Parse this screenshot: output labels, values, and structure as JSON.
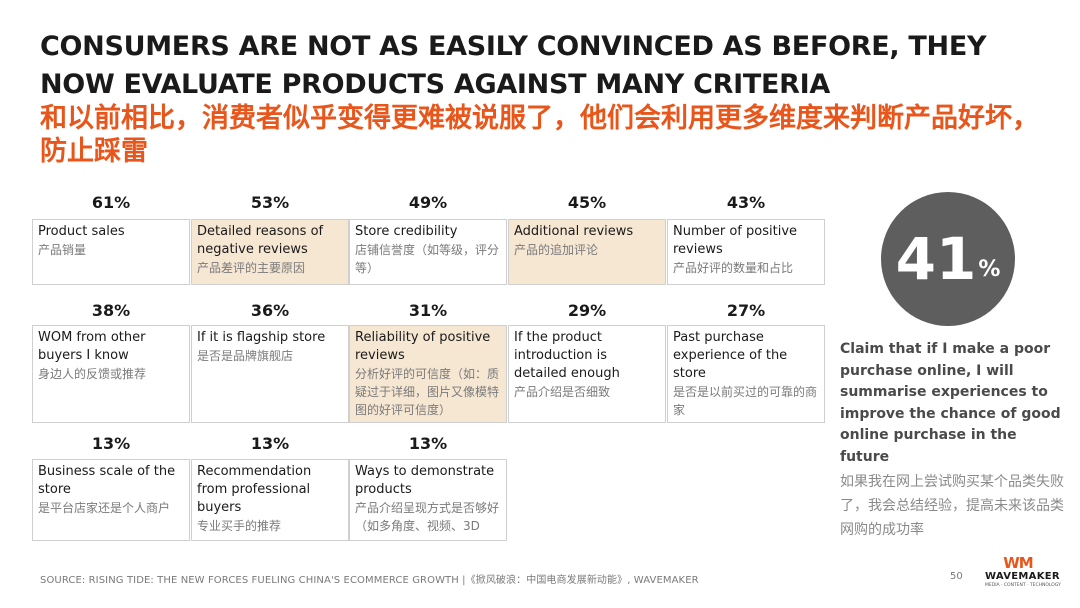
{
  "title_en": "CONSUMERS ARE NOT AS EASILY CONVINCED AS BEFORE, THEY NOW EVALUATE PRODUCTS AGAINST MANY CRITERIA",
  "title_cn": "和以前相比，消费者似乎变得更难被说服了，他们会利用更多维度来判断产品好坏，防止踩雷",
  "criteria": [
    {
      "pct": "61%",
      "en": "Product sales",
      "cn": "产品销量",
      "highlight": false
    },
    {
      "pct": "53%",
      "en": "Detailed reasons of negative reviews",
      "cn": "产品差评的主要原因",
      "highlight": true
    },
    {
      "pct": "49%",
      "en": "Store credibility",
      "cn": "店铺信誉度（如等级，评分等）",
      "highlight": false
    },
    {
      "pct": "45%",
      "en": "Additional reviews",
      "cn": "产品的追加评论",
      "highlight": true
    },
    {
      "pct": "43%",
      "en": "Number of positive reviews",
      "cn": "产品好评的数量和占比",
      "highlight": false
    },
    {
      "pct": "38%",
      "en": "WOM from other buyers I know",
      "cn": "身边人的反馈或推荐",
      "highlight": false
    },
    {
      "pct": "36%",
      "en": "If it is flagship store",
      "cn": "是否是品牌旗舰店",
      "highlight": false
    },
    {
      "pct": "31%",
      "en": "Reliability of positive reviews",
      "cn": "分析好评的可信度（如：质疑过于详细，图片又像模特图的好评可信度）",
      "highlight": true
    },
    {
      "pct": "29%",
      "en": "If the product introduction is detailed enough",
      "cn": "产品介绍是否细致",
      "highlight": false
    },
    {
      "pct": "27%",
      "en": "Past purchase experience of the store",
      "cn": "是否是以前买过的可靠的商家",
      "highlight": false
    },
    {
      "pct": "13%",
      "en": "Business scale of the store",
      "cn": "是平台店家还是个人商户",
      "highlight": false
    },
    {
      "pct": "13%",
      "en": "Recommendation from professional buyers",
      "cn": "专业买手的推荐",
      "highlight": false
    },
    {
      "pct": "13%",
      "en": "Ways to demonstrate products",
      "cn": "产品介绍呈现方式是否够好（如多角度、视频、3D",
      "highlight": false
    }
  ],
  "stat": {
    "number": "41",
    "unit": "%"
  },
  "claim_en": "Claim that if I make a poor purchase online, I will summarise experiences to improve the chance of good online purchase in the future",
  "claim_cn": "如果我在网上尝试购买某个品类失败了，我会总结经验，提高未来该品类网购的成功率",
  "source": "SOURCE: RISING TIDE: THE NEW FORCES FUELING CHINA'S ECOMMERCE GROWTH |《掀风破浪：中国电商发展新动能》, WAVEMAKER",
  "page_number": "50",
  "logo": {
    "mark": "WM",
    "name": "WAVEMAKER",
    "tagline": "MEDIA · CONTENT · TECHNOLOGY"
  },
  "colors": {
    "accent": "#e8561b",
    "highlight": "#f6e7d3",
    "circle": "#5e5e5e"
  }
}
